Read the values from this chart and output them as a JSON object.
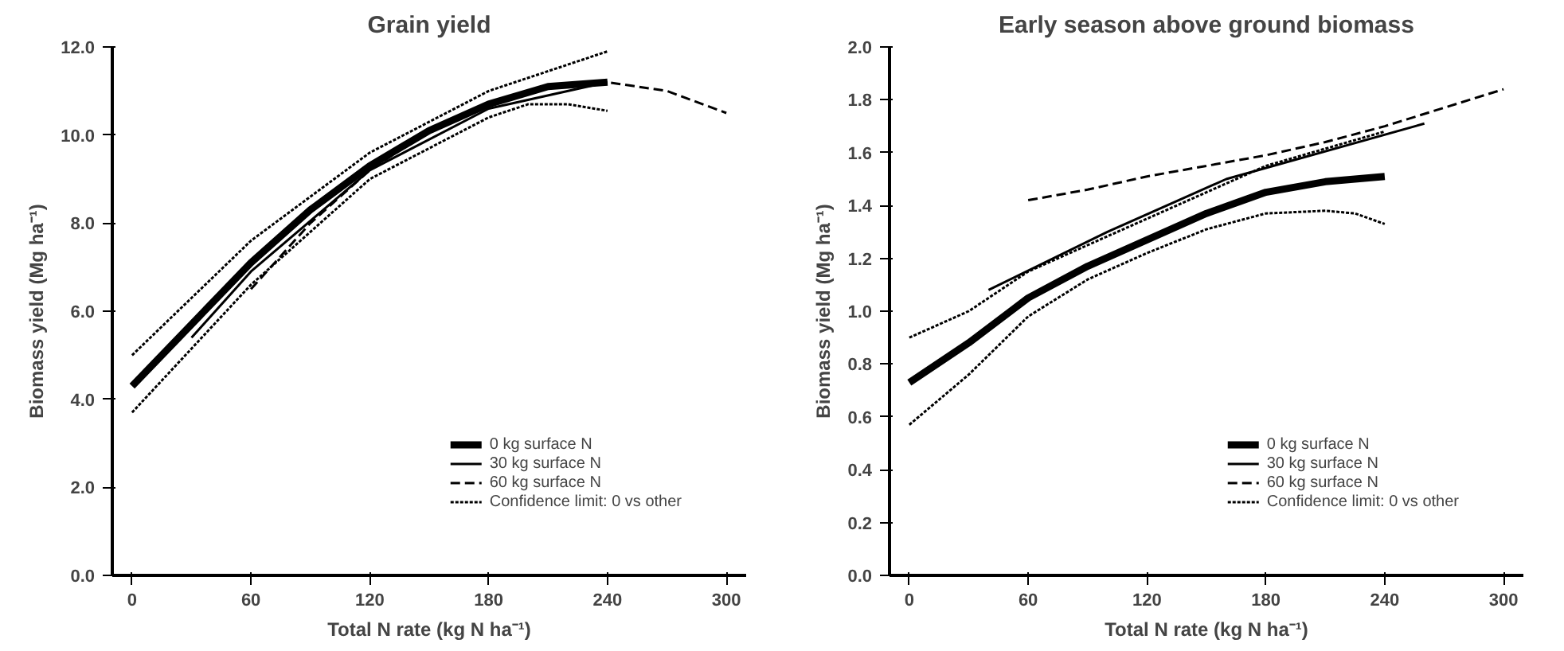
{
  "chart_data": [
    {
      "type": "line",
      "title": "Grain yield",
      "xlabel": "Total N rate (kg N ha⁻¹)",
      "ylabel": "Biomass yield (Mg ha⁻¹)",
      "xlim": [
        -10,
        310
      ],
      "ylim": [
        0,
        12
      ],
      "xticks": [
        0,
        60,
        120,
        180,
        240,
        300
      ],
      "yticks": [
        {
          "value": 0,
          "label": "0.0"
        },
        {
          "value": 2,
          "label": "2.0"
        },
        {
          "value": 4,
          "label": "4.0"
        },
        {
          "value": 6,
          "label": "6.0"
        },
        {
          "value": 8,
          "label": "8.0"
        },
        {
          "value": 10,
          "label": "10.0"
        },
        {
          "value": 12,
          "label": "12.0"
        }
      ],
      "grid": false,
      "legend": "bottom right",
      "series": [
        {
          "name": "0 kg surface N",
          "color": "#000000",
          "line_style": "solid",
          "x": [
            0,
            30,
            60,
            90,
            120,
            150,
            180,
            210,
            240
          ],
          "values": [
            4.3,
            5.7,
            7.1,
            8.3,
            9.3,
            10.1,
            10.7,
            11.1,
            11.2
          ]
        },
        {
          "name": "30 kg surface N",
          "color": "#000000",
          "line_style": "solid",
          "x": [
            30,
            60,
            120,
            180,
            240
          ],
          "values": [
            5.4,
            6.9,
            9.2,
            10.6,
            11.2
          ]
        },
        {
          "name": "60 kg surface N",
          "color": "#000000",
          "line_style": "dashed",
          "x": [
            60,
            90,
            120,
            150,
            180,
            210,
            240,
            270,
            300
          ],
          "values": [
            6.5,
            8.0,
            9.2,
            10.1,
            10.7,
            11.1,
            11.2,
            11.0,
            10.5
          ]
        },
        {
          "name": "Confidence limit: 0 vs other",
          "color": "#000000",
          "line_style": "dotted",
          "x": [
            0,
            60,
            120,
            180,
            240
          ],
          "values": [
            5.0,
            7.6,
            9.6,
            11.0,
            11.9
          ]
        },
        {
          "color": "#000000",
          "line_style": "dotted",
          "x": [
            0,
            60,
            120,
            180,
            200,
            220,
            240
          ],
          "values": [
            3.7,
            6.6,
            9.0,
            10.4,
            10.7,
            10.7,
            10.55
          ]
        }
      ]
    },
    {
      "type": "line",
      "title": "Early season above ground biomass",
      "xlabel": "Total N rate (kg N ha⁻¹)",
      "ylabel": "Biomass yield (Mg ha⁻¹)",
      "xlim": [
        -10,
        310
      ],
      "ylim": [
        0,
        2
      ],
      "xticks": [
        0,
        60,
        120,
        180,
        240,
        300
      ],
      "yticks": [
        {
          "value": 0,
          "label": "0.0"
        },
        {
          "value": 0.2,
          "label": "0.2"
        },
        {
          "value": 0.4,
          "label": "0.4"
        },
        {
          "value": 0.6,
          "label": "0.6"
        },
        {
          "value": 0.8,
          "label": "0.8"
        },
        {
          "value": 1,
          "label": "1.0"
        },
        {
          "value": 1.2,
          "label": "1.2"
        },
        {
          "value": 1.4,
          "label": "1.4"
        },
        {
          "value": 1.6,
          "label": "1.6"
        },
        {
          "value": 1.8,
          "label": "1.8"
        },
        {
          "value": 2,
          "label": "2.0"
        }
      ],
      "grid": false,
      "legend": "bottom right",
      "series": [
        {
          "name": "0 kg surface N",
          "color": "#000000",
          "line_style": "solid",
          "x": [
            0,
            30,
            60,
            90,
            120,
            150,
            180,
            210,
            240
          ],
          "values": [
            0.73,
            0.88,
            1.05,
            1.17,
            1.27,
            1.37,
            1.45,
            1.49,
            1.51
          ]
        },
        {
          "name": "30 kg surface N",
          "color": "#000000",
          "line_style": "solid",
          "x": [
            40,
            100,
            160,
            260
          ],
          "values": [
            1.08,
            1.3,
            1.5,
            1.71
          ]
        },
        {
          "name": "60 kg surface N",
          "color": "#000000",
          "line_style": "dashed",
          "x": [
            60,
            90,
            120,
            150,
            180,
            210,
            240,
            270,
            300
          ],
          "values": [
            1.42,
            1.46,
            1.51,
            1.55,
            1.59,
            1.64,
            1.7,
            1.77,
            1.84
          ]
        },
        {
          "name": "Confidence limit: 0 vs other",
          "color": "#000000",
          "line_style": "dotted",
          "x": [
            0,
            30,
            60,
            90,
            120,
            150,
            180,
            240
          ],
          "values": [
            0.9,
            1.0,
            1.15,
            1.25,
            1.35,
            1.45,
            1.55,
            1.68
          ]
        },
        {
          "color": "#000000",
          "line_style": "dotted",
          "x": [
            0,
            30,
            60,
            90,
            120,
            150,
            180,
            210,
            225,
            240
          ],
          "values": [
            0.57,
            0.76,
            0.98,
            1.12,
            1.22,
            1.31,
            1.37,
            1.38,
            1.37,
            1.33
          ]
        }
      ]
    }
  ]
}
